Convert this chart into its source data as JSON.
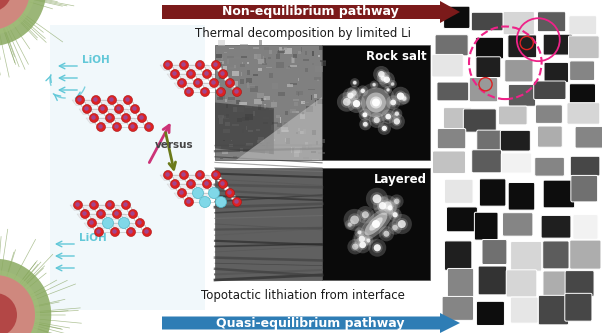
{
  "top_arrow_text": "Non-equilibrium pathway",
  "top_arrow_color": "#7B1A1A",
  "bottom_arrow_text": "Quasi-equilibrium pathway",
  "bottom_arrow_color": "#2E7DB5",
  "top_label": "Thermal decomposition by limited Li",
  "bottom_label": "Topotactic lithiation from interface",
  "top_right_label": "Rock salt",
  "bottom_right_label": "Layered",
  "versus_text": "versus",
  "LiOH_top": "LiOH",
  "LiOH_bottom": "LiOH",
  "bg_color": "#FFFFFF",
  "arrow_text_color": "#FFFFFF",
  "label_color": "#1A1A1A",
  "pink_arrow_color": "#CC3377",
  "green_arrow_color": "#6B7A1A",
  "cyan_color": "#62C8D8",
  "red_atom_color": "#DD2222",
  "purple_atom_color": "#8855BB",
  "light_bg": "#E0F0F8"
}
